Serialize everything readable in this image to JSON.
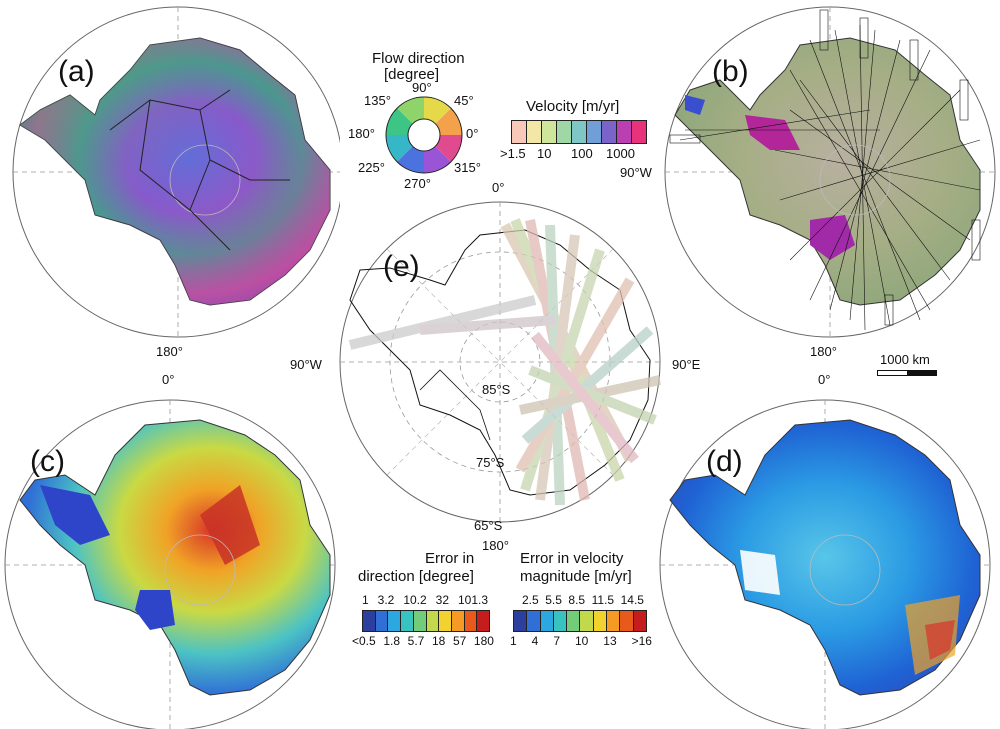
{
  "panels": {
    "a": {
      "letter": "(a)",
      "bottom_label": "180°"
    },
    "b": {
      "letter": "(b)",
      "right_label": "90°W",
      "bottom_label": "180°"
    },
    "c": {
      "letter": "(c)",
      "top_label": "0°"
    },
    "d": {
      "letter": "(d)",
      "top_label": "0°"
    },
    "e": {
      "letter": "(e)",
      "top_label": "0°",
      "bottom_label": "180°",
      "left_label": "90°W",
      "right_label": "90°E",
      "lat_labels": [
        "85°S",
        "75°S",
        "65°S"
      ]
    }
  },
  "scale_bar": {
    "label": "1000 km"
  },
  "flow_direction": {
    "title_line1": "Flow direction",
    "title_line2": "[degree]",
    "ticks": [
      "90°",
      "45°",
      "0°",
      "315°",
      "270°",
      "225°",
      "180°",
      "135°"
    ]
  },
  "velocity_legend": {
    "title": "Velocity [m/yr]",
    "ticks": [
      ">1.5",
      "10",
      "100",
      "1000"
    ],
    "colors": [
      "#f8c8b8",
      "#f3e7a6",
      "#cfe59b",
      "#9fd7a6",
      "#7fc7c6",
      "#6f9fd6",
      "#7a63c9",
      "#b93fb3",
      "#e8337a"
    ]
  },
  "error_direction_legend": {
    "title_line1": "Error in",
    "title_line2": "direction [degree]",
    "top_ticks": [
      "1",
      "3.2",
      "10.2",
      "32",
      "101.3"
    ],
    "bottom_ticks": [
      "<0.5",
      "1.8",
      "5.7",
      "18",
      "57",
      "180"
    ],
    "colors": [
      "#2c3e9e",
      "#2f6fd6",
      "#2da7df",
      "#38c3c0",
      "#72cc7a",
      "#c2d94b",
      "#f2d22e",
      "#f59b24",
      "#e85a1c",
      "#c51d1d"
    ]
  },
  "error_velocity_legend": {
    "title_line1": "Error in velocity",
    "title_line2": "magnitude [m/yr]",
    "top_ticks": [
      "2.5",
      "5.5",
      "8.5",
      "11.5",
      "14.5"
    ],
    "bottom_ticks": [
      "1",
      "4",
      "7",
      "10",
      "13",
      ">16"
    ],
    "colors": [
      "#2c3e9e",
      "#2f6fd6",
      "#2da7df",
      "#38c3c0",
      "#72cc7a",
      "#c2d94b",
      "#f2d22e",
      "#f59b24",
      "#e85a1c",
      "#c51d1d"
    ]
  }
}
